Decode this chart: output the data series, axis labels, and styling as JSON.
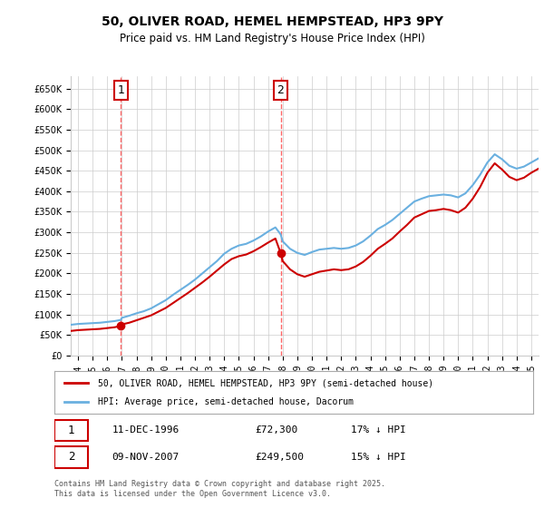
{
  "title": "50, OLIVER ROAD, HEMEL HEMPSTEAD, HP3 9PY",
  "subtitle": "Price paid vs. HM Land Registry's House Price Index (HPI)",
  "legend_line1": "50, OLIVER ROAD, HEMEL HEMPSTEAD, HP3 9PY (semi-detached house)",
  "legend_line2": "HPI: Average price, semi-detached house, Dacorum",
  "annotation1_label": "1",
  "annotation1_date": "11-DEC-1996",
  "annotation1_price": "£72,300",
  "annotation1_hpi": "17% ↓ HPI",
  "annotation2_label": "2",
  "annotation2_date": "09-NOV-2007",
  "annotation2_price": "£249,500",
  "annotation2_hpi": "15% ↓ HPI",
  "footer": "Contains HM Land Registry data © Crown copyright and database right 2025.\nThis data is licensed under the Open Government Licence v3.0.",
  "sale1_x": 1996.94,
  "sale1_y": 72300,
  "sale2_x": 2007.86,
  "sale2_y": 249500,
  "vline1_x": 1996.94,
  "vline2_x": 2007.86,
  "hpi_color": "#6ab0e0",
  "price_color": "#cc0000",
  "vline_color": "#ff6666",
  "background_color": "#ffffff",
  "grid_color": "#cccccc",
  "ylim": [
    0,
    680000
  ],
  "xlim_start": 1993.5,
  "xlim_end": 2025.5,
  "hpi_data_x": [
    1993.5,
    1994.0,
    1994.5,
    1995.0,
    1995.5,
    1996.0,
    1996.5,
    1996.94,
    1997.0,
    1997.5,
    1998.0,
    1998.5,
    1999.0,
    1999.5,
    2000.0,
    2000.5,
    2001.0,
    2001.5,
    2002.0,
    2002.5,
    2003.0,
    2003.5,
    2004.0,
    2004.5,
    2005.0,
    2005.5,
    2006.0,
    2006.5,
    2007.0,
    2007.5,
    2007.86,
    2008.0,
    2008.5,
    2009.0,
    2009.5,
    2010.0,
    2010.5,
    2011.0,
    2011.5,
    2012.0,
    2012.5,
    2013.0,
    2013.5,
    2014.0,
    2014.5,
    2015.0,
    2015.5,
    2016.0,
    2016.5,
    2017.0,
    2017.5,
    2018.0,
    2018.5,
    2019.0,
    2019.5,
    2020.0,
    2020.5,
    2021.0,
    2021.5,
    2022.0,
    2022.5,
    2023.0,
    2023.5,
    2024.0,
    2024.5,
    2025.0,
    2025.5
  ],
  "hpi_data_y": [
    75000,
    77000,
    78000,
    79000,
    80000,
    82000,
    84000,
    87000,
    92000,
    97000,
    103000,
    108000,
    115000,
    125000,
    135000,
    148000,
    160000,
    172000,
    185000,
    200000,
    215000,
    230000,
    248000,
    260000,
    268000,
    272000,
    280000,
    290000,
    302000,
    312000,
    295000,
    278000,
    260000,
    250000,
    245000,
    252000,
    258000,
    260000,
    262000,
    260000,
    262000,
    268000,
    278000,
    292000,
    308000,
    318000,
    330000,
    345000,
    360000,
    375000,
    382000,
    388000,
    390000,
    392000,
    390000,
    385000,
    395000,
    415000,
    440000,
    470000,
    490000,
    478000,
    462000,
    455000,
    460000,
    470000,
    480000
  ],
  "price_data_x": [
    1993.5,
    1994.0,
    1994.5,
    1995.0,
    1995.5,
    1996.0,
    1996.5,
    1996.94,
    1997.0,
    1997.5,
    1998.0,
    1998.5,
    1999.0,
    1999.5,
    2000.0,
    2000.5,
    2001.0,
    2001.5,
    2002.0,
    2002.5,
    2003.0,
    2003.5,
    2004.0,
    2004.5,
    2005.0,
    2005.5,
    2006.0,
    2006.5,
    2007.0,
    2007.5,
    2007.86,
    2008.0,
    2008.5,
    2009.0,
    2009.5,
    2010.0,
    2010.5,
    2011.0,
    2011.5,
    2012.0,
    2012.5,
    2013.0,
    2013.5,
    2014.0,
    2014.5,
    2015.0,
    2015.5,
    2016.0,
    2016.5,
    2017.0,
    2017.5,
    2018.0,
    2018.5,
    2019.0,
    2019.5,
    2020.0,
    2020.5,
    2021.0,
    2021.5,
    2022.0,
    2022.5,
    2023.0,
    2023.5,
    2024.0,
    2024.5,
    2025.0,
    2025.5
  ],
  "price_data_y": [
    60000,
    62000,
    63000,
    64000,
    65000,
    67000,
    69000,
    72300,
    76000,
    80000,
    86000,
    92000,
    98000,
    107000,
    116000,
    128000,
    140000,
    152000,
    165000,
    178000,
    192000,
    207000,
    222000,
    235000,
    242000,
    246000,
    254000,
    264000,
    275000,
    285000,
    249500,
    230000,
    210000,
    198000,
    192000,
    198000,
    204000,
    207000,
    210000,
    208000,
    210000,
    217000,
    228000,
    243000,
    260000,
    272000,
    285000,
    302000,
    318000,
    336000,
    344000,
    352000,
    354000,
    357000,
    354000,
    348000,
    360000,
    382000,
    410000,
    445000,
    468000,
    453000,
    435000,
    427000,
    433000,
    445000,
    455000
  ],
  "xticks": [
    1994,
    1995,
    1996,
    1997,
    1998,
    1999,
    2000,
    2001,
    2002,
    2003,
    2004,
    2005,
    2006,
    2007,
    2008,
    2009,
    2010,
    2011,
    2012,
    2013,
    2014,
    2015,
    2016,
    2017,
    2018,
    2019,
    2020,
    2021,
    2022,
    2023,
    2024,
    2025
  ],
  "yticks": [
    0,
    50000,
    100000,
    150000,
    200000,
    250000,
    300000,
    350000,
    400000,
    450000,
    500000,
    550000,
    600000,
    650000
  ]
}
